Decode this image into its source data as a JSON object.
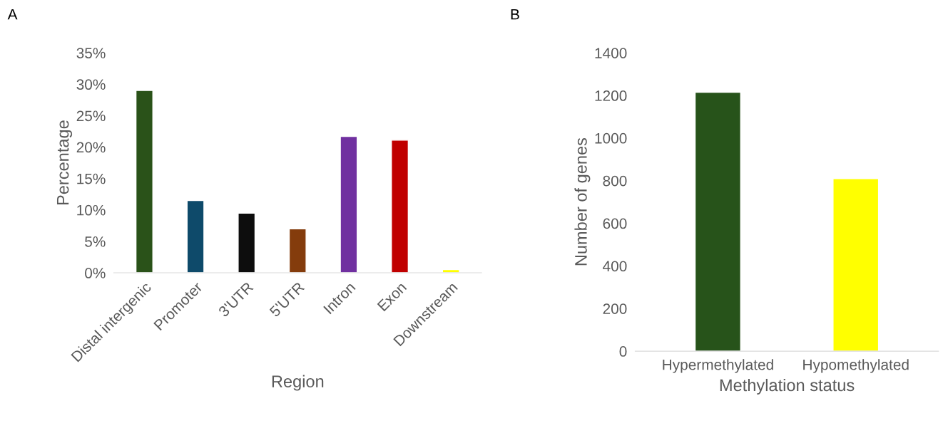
{
  "chart_data": [
    {
      "type": "bar",
      "title": "A",
      "xlabel": "Region",
      "ylabel": "Percentage",
      "categories": [
        "Distal intergenic",
        "Promoter",
        "3'UTR",
        "5'UTR",
        "Intron",
        "Exon",
        "Downstream"
      ],
      "values": [
        29.0,
        11.5,
        9.5,
        7.0,
        21.7,
        21.1,
        0.5
      ],
      "colors": [
        "#2a5219",
        "#0e4a6a",
        "#0d0d0d",
        "#843c0c",
        "#7030a0",
        "#c00000",
        "#ffff00"
      ],
      "ylim": [
        0,
        35
      ],
      "yticks": [
        {
          "value": 0,
          "label": "0%"
        },
        {
          "value": 5,
          "label": "5%"
        },
        {
          "value": 10,
          "label": "10%"
        },
        {
          "value": 15,
          "label": "15%"
        },
        {
          "value": 20,
          "label": "20%"
        },
        {
          "value": 25,
          "label": "25%"
        },
        {
          "value": 30,
          "label": "30%"
        },
        {
          "value": 35,
          "label": "35%"
        }
      ],
      "grid": false,
      "legend": false
    },
    {
      "type": "bar",
      "title": "B",
      "xlabel": "Methylation status",
      "ylabel": "Number of genes",
      "categories": [
        "Hypermethylated",
        "Hypomethylated"
      ],
      "values": [
        1215,
        810
      ],
      "colors": [
        "#27531a",
        "#ffff00"
      ],
      "ylim": [
        0,
        1400
      ],
      "yticks": [
        0,
        200,
        400,
        600,
        800,
        1000,
        1200,
        1400
      ],
      "grid": false,
      "legend": false
    }
  ]
}
